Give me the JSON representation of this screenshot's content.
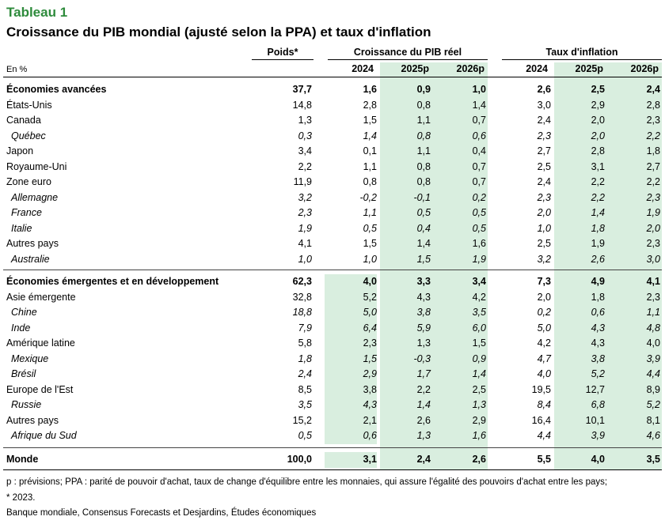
{
  "label": "Tableau 1",
  "title": "Croissance du PIB mondial (ajusté selon la PPA) et taux d'inflation",
  "units": "En %",
  "headers": {
    "weight": "Poids*",
    "growth": "Croissance du PIB réel",
    "inflation": "Taux d'inflation",
    "years": [
      "2024",
      "2025p",
      "2026p",
      "2024",
      "2025p",
      "2026p"
    ]
  },
  "colors": {
    "accent": "#2e8b3c",
    "highlight": "#d9eedf"
  },
  "rows": [
    {
      "name": "Économies avancées",
      "style": "bold",
      "values": [
        "37,7",
        "1,6",
        "0,9",
        "1,0",
        "2,6",
        "2,5",
        "2,4"
      ]
    },
    {
      "name": "États-Unis",
      "style": "normal",
      "values": [
        "14,8",
        "2,8",
        "0,8",
        "1,4",
        "3,0",
        "2,9",
        "2,8"
      ]
    },
    {
      "name": "Canada",
      "style": "normal",
      "values": [
        "1,3",
        "1,5",
        "1,1",
        "0,7",
        "2,4",
        "2,0",
        "2,3"
      ]
    },
    {
      "name": "Québec",
      "style": "italic",
      "values": [
        "0,3",
        "1,4",
        "0,8",
        "0,6",
        "2,3",
        "2,0",
        "2,2"
      ]
    },
    {
      "name": "Japon",
      "style": "normal",
      "values": [
        "3,4",
        "0,1",
        "1,1",
        "0,4",
        "2,7",
        "2,8",
        "1,8"
      ]
    },
    {
      "name": "Royaume-Uni",
      "style": "normal",
      "values": [
        "2,2",
        "1,1",
        "0,8",
        "0,7",
        "2,5",
        "3,1",
        "2,7"
      ]
    },
    {
      "name": "Zone euro",
      "style": "normal",
      "values": [
        "11,9",
        "0,8",
        "0,8",
        "0,7",
        "2,4",
        "2,2",
        "2,2"
      ]
    },
    {
      "name": "Allemagne",
      "style": "italic",
      "values": [
        "3,2",
        "-0,2",
        "-0,1",
        "0,2",
        "2,3",
        "2,2",
        "2,3"
      ]
    },
    {
      "name": "France",
      "style": "italic",
      "values": [
        "2,3",
        "1,1",
        "0,5",
        "0,5",
        "2,0",
        "1,4",
        "1,9"
      ]
    },
    {
      "name": "Italie",
      "style": "italic",
      "values": [
        "1,9",
        "0,5",
        "0,4",
        "0,5",
        "1,0",
        "1,8",
        "2,0"
      ]
    },
    {
      "name": "Autres pays",
      "style": "normal",
      "values": [
        "4,1",
        "1,5",
        "1,4",
        "1,6",
        "2,5",
        "1,9",
        "2,3"
      ]
    },
    {
      "name": "Australie",
      "style": "italic",
      "values": [
        "1,0",
        "1,0",
        "1,5",
        "1,9",
        "3,2",
        "2,6",
        "3,0"
      ]
    },
    {
      "name": "Économies émergentes et en développement",
      "style": "bold",
      "values": [
        "62,3",
        "4,0",
        "3,3",
        "3,4",
        "7,3",
        "4,9",
        "4,1"
      ]
    },
    {
      "name": "Asie émergente",
      "style": "normal",
      "values": [
        "32,8",
        "5,2",
        "4,3",
        "4,2",
        "2,0",
        "1,8",
        "2,3"
      ]
    },
    {
      "name": "Chine",
      "style": "italic",
      "values": [
        "18,8",
        "5,0",
        "3,8",
        "3,5",
        "0,2",
        "0,6",
        "1,1"
      ]
    },
    {
      "name": "Inde",
      "style": "italic",
      "values": [
        "7,9",
        "6,4",
        "5,9",
        "6,0",
        "5,0",
        "4,3",
        "4,8"
      ]
    },
    {
      "name": "Amérique latine",
      "style": "normal",
      "values": [
        "5,8",
        "2,3",
        "1,3",
        "1,5",
        "4,2",
        "4,3",
        "4,0"
      ]
    },
    {
      "name": "Mexique",
      "style": "italic",
      "values": [
        "1,8",
        "1,5",
        "-0,3",
        "0,9",
        "4,7",
        "3,8",
        "3,9"
      ]
    },
    {
      "name": "Brésil",
      "style": "italic",
      "values": [
        "2,4",
        "2,9",
        "1,7",
        "1,4",
        "4,0",
        "5,2",
        "4,4"
      ]
    },
    {
      "name": "Europe de l'Est",
      "style": "normal",
      "values": [
        "8,5",
        "3,8",
        "2,2",
        "2,5",
        "19,5",
        "12,7",
        "8,9"
      ]
    },
    {
      "name": "Russie",
      "style": "italic",
      "values": [
        "3,5",
        "4,3",
        "1,4",
        "1,3",
        "8,4",
        "6,8",
        "5,2"
      ]
    },
    {
      "name": "Autres pays",
      "style": "normal",
      "values": [
        "15,2",
        "2,1",
        "2,6",
        "2,9",
        "16,4",
        "10,1",
        "8,1"
      ]
    },
    {
      "name": "Afrique du Sud",
      "style": "italic",
      "values": [
        "0,5",
        "0,6",
        "1,3",
        "1,6",
        "4,4",
        "3,9",
        "4,6"
      ]
    },
    {
      "name": "Monde",
      "style": "bold",
      "values": [
        "100,0",
        "3,1",
        "2,4",
        "2,6",
        "5,5",
        "4,0",
        "3,5"
      ]
    }
  ],
  "footnotes": [
    "p : prévisions; PPA : parité de pouvoir d'achat, taux de change d'équilibre entre les monnaies, qui assure l'égalité des pouvoirs d'achat entre les pays;",
    "* 2023.",
    "Banque mondiale, Consensus Forecasts et Desjardins, Études économiques"
  ]
}
